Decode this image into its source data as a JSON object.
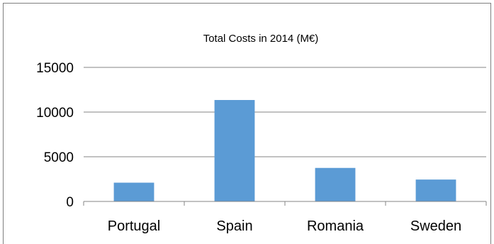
{
  "chart_data": {
    "type": "bar",
    "title": "Total Costs in 2014 (M€)",
    "xlabel": "",
    "ylabel": "",
    "categories": [
      "Portugal",
      "Spain",
      "Romania",
      "Sweden"
    ],
    "values": [
      2100,
      11350,
      3750,
      2450
    ],
    "ylim": [
      0,
      15000
    ],
    "yticks": [
      0,
      5000,
      10000,
      15000
    ],
    "ytick_labels": [
      "0",
      "5000",
      "10000",
      "15000"
    ],
    "grid": true,
    "legend": "none",
    "bar_color": "#5b9bd5"
  }
}
